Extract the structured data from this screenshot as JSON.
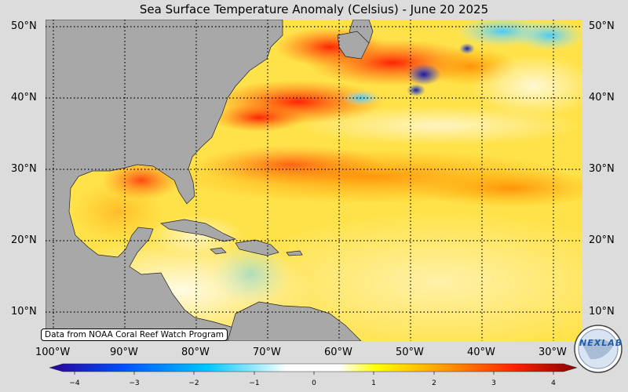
{
  "title": "Sea Surface Temperature Anomaly (Celsius) - June 20 2025",
  "attribution": "Data from NOAA Coral Reef Watch Program",
  "logo_text": "NEXLAB",
  "lat_labels": [
    "50°N",
    "40°N",
    "30°N",
    "20°N",
    "10°N"
  ],
  "lon_labels": [
    "100°W",
    "90°W",
    "80°W",
    "70°W",
    "60°W",
    "50°W",
    "40°W",
    "30°W"
  ],
  "colorbar": {
    "ticks": [
      "−4",
      "−3",
      "−2",
      "−1",
      "0",
      "1",
      "2",
      "3",
      "4"
    ],
    "min": -4,
    "max": 4,
    "colors": [
      "#2a0099",
      "#0050ff",
      "#00c8ff",
      "#ffffff",
      "#ffff00",
      "#ff9900",
      "#ff2200",
      "#8a0000"
    ]
  },
  "colors": {
    "land": "#a8a8a8",
    "background": "#dcdcdc"
  }
}
